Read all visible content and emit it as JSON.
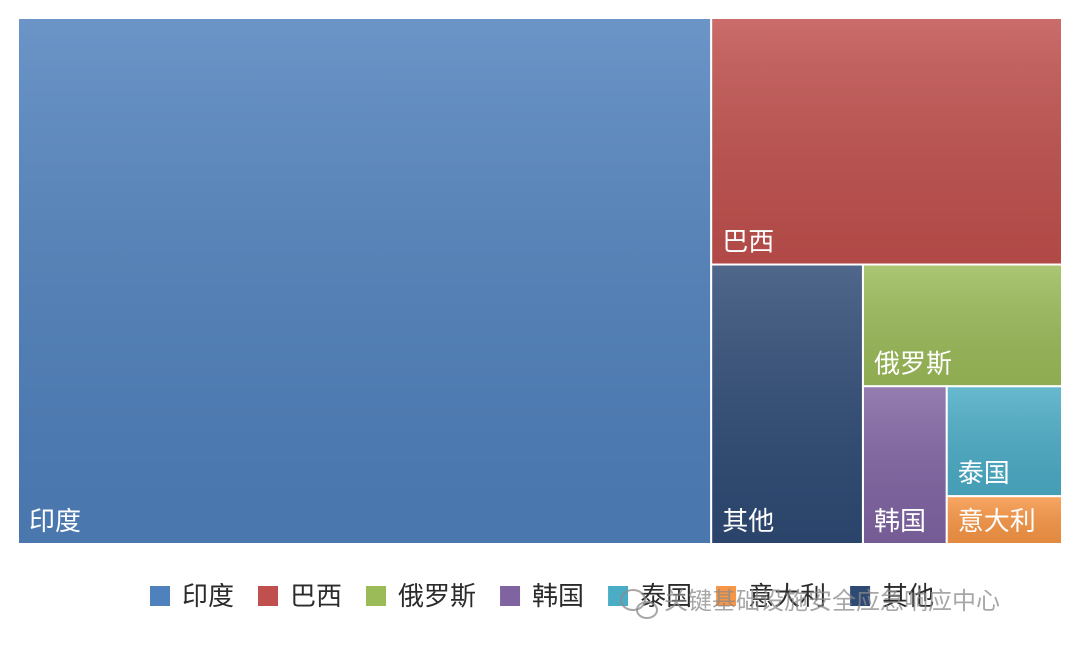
{
  "chart_data": {
    "type": "treemap",
    "categories": [
      "印度",
      "巴西",
      "其他",
      "俄罗斯",
      "韩国",
      "泰国",
      "意大利"
    ],
    "values": [
      66.2,
      15.7,
      7.7,
      4.4,
      2.4,
      2.3,
      1.0
    ],
    "colors": {
      "印度": "#4f81bd",
      "巴西": "#c0504d",
      "其他": "#2e4a74",
      "俄罗斯": "#9bbb59",
      "韩国": "#8064a2",
      "泰国": "#4bacc6",
      "意大利": "#f79646"
    },
    "legend": {
      "position": "bottom",
      "entries": [
        "印度",
        "巴西",
        "俄罗斯",
        "韩国",
        "泰国",
        "意大利",
        "其他"
      ]
    }
  },
  "watermark": {
    "text": "关键基础设施安全应急响应中心",
    "icon": "wechat-icon"
  }
}
